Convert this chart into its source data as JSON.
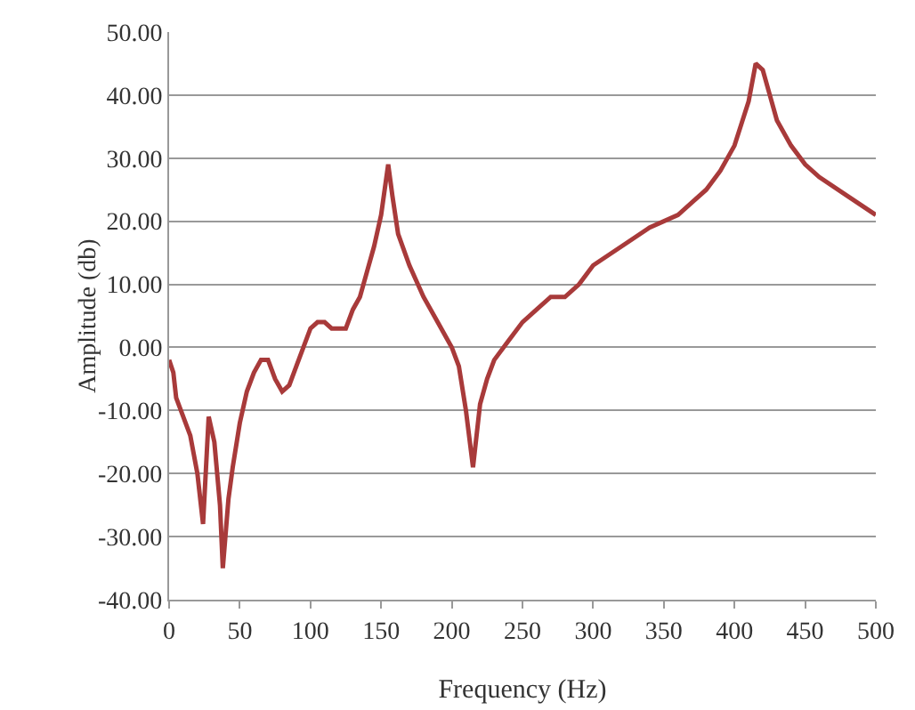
{
  "chart_data": {
    "type": "line",
    "xlabel": "Frequency (Hz)",
    "ylabel": "Amplitude (db)",
    "x": [
      0,
      3,
      5,
      10,
      15,
      20,
      24,
      28,
      32,
      36,
      38,
      42,
      45,
      50,
      55,
      60,
      65,
      70,
      75,
      80,
      85,
      90,
      95,
      100,
      105,
      110,
      115,
      120,
      125,
      130,
      135,
      140,
      145,
      150,
      155,
      158,
      162,
      170,
      180,
      190,
      200,
      205,
      210,
      215,
      220,
      225,
      230,
      240,
      250,
      260,
      270,
      280,
      290,
      300,
      320,
      340,
      360,
      370,
      380,
      390,
      400,
      410,
      415,
      420,
      425,
      430,
      440,
      450,
      460,
      480,
      500
    ],
    "series": [
      {
        "color": "#a83a3a",
        "values": [
          -2,
          -4,
          -8,
          -11,
          -14,
          -20,
          -28,
          -11,
          -15,
          -25,
          -35,
          -24,
          -19,
          -12,
          -7,
          -4,
          -2,
          -2,
          -5,
          -7,
          -6,
          -3,
          0,
          3,
          4,
          4,
          3,
          3,
          3,
          6,
          8,
          12,
          16,
          21,
          29,
          24,
          18,
          13,
          8,
          4,
          0,
          -3,
          -10,
          -19,
          -9,
          -5,
          -2,
          1,
          4,
          6,
          8,
          8,
          10,
          13,
          16,
          19,
          21,
          23,
          25,
          28,
          32,
          39,
          45,
          44,
          40,
          36,
          32,
          29,
          27,
          24,
          21
        ]
      }
    ],
    "xlim": [
      0,
      500
    ],
    "xticks": [
      0,
      50,
      100,
      150,
      200,
      250,
      300,
      350,
      400,
      450,
      500
    ],
    "ylim": [
      -40,
      50
    ],
    "yticks": [
      {
        "value": -40,
        "label": "-40.00"
      },
      {
        "value": -30,
        "label": "-30.00"
      },
      {
        "value": -20,
        "label": "-20.00"
      },
      {
        "value": -10,
        "label": "-10.00"
      },
      {
        "value": 0,
        "label": "0.00"
      },
      {
        "value": 10,
        "label": "10.00"
      },
      {
        "value": 20,
        "label": "20.00"
      },
      {
        "value": 30,
        "label": "30.00"
      },
      {
        "value": 40,
        "label": "40.00"
      },
      {
        "value": 50,
        "label": "50.00"
      }
    ],
    "grid": "y",
    "marker": "none",
    "line_style": "solid"
  }
}
